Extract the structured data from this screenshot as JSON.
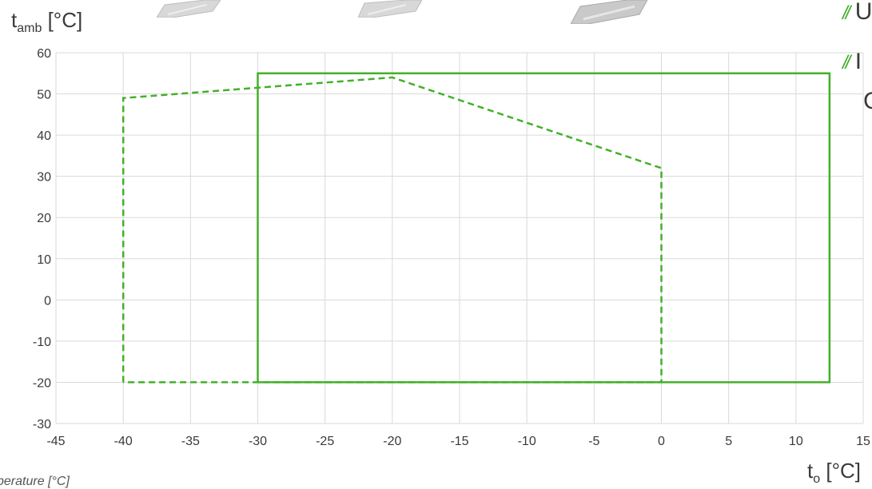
{
  "header": {
    "bullet_1_text": "U",
    "bullet_2_text": "I",
    "bullet_2_line2": "C"
  },
  "footnote": "perature [°C]",
  "colors": {
    "series": "#43b02a",
    "grid": "#d9d9d9",
    "text": "#3a3a3a"
  },
  "chart_data": {
    "type": "line",
    "ylabel_main": "t",
    "ylabel_sub": "amb",
    "ylabel_unit": " [°C]",
    "xlabel_main": "t",
    "xlabel_sub": "o",
    "xlabel_unit": " [°C]",
    "xlim": [
      -45,
      15
    ],
    "ylim": [
      -30,
      60
    ],
    "x_ticks": [
      -45,
      -40,
      -35,
      -30,
      -25,
      -20,
      -15,
      -10,
      -5,
      0,
      5,
      10,
      15
    ],
    "y_ticks": [
      60,
      50,
      40,
      30,
      20,
      10,
      0,
      -10,
      -20,
      -30
    ],
    "x_tick_labels": [
      "-45",
      "-40",
      "-35",
      "-30",
      "-25",
      "-20",
      "-15",
      "-10",
      "-5",
      "0",
      "5",
      "10",
      "15"
    ],
    "y_tick_labels": [
      "60",
      "50",
      "40",
      "30",
      "20",
      "10",
      "0",
      "-10",
      "-20",
      "-30"
    ],
    "grid": true,
    "series": [
      {
        "style": "solid",
        "points": [
          [
            -30,
            -20
          ],
          [
            -30,
            55
          ],
          [
            12.5,
            55
          ],
          [
            12.5,
            -20
          ],
          [
            -30,
            -20
          ]
        ]
      },
      {
        "style": "dashed",
        "points": [
          [
            -40,
            -20
          ],
          [
            -40,
            49
          ],
          [
            -20,
            54
          ],
          [
            0,
            32
          ],
          [
            0,
            -20
          ],
          [
            -40,
            -20
          ]
        ]
      }
    ]
  }
}
